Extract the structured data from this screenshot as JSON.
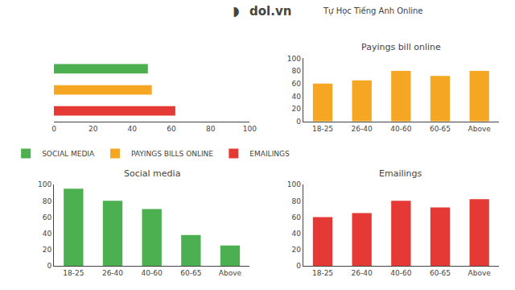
{
  "chart_data": [
    {
      "type": "bar",
      "orientation": "horizontal",
      "annotations": [
        "◗",
        "dol.vn",
        "Tự Học Tiếng Anh Online"
      ],
      "categories": [
        null,
        null,
        null
      ],
      "series": [
        {
          "name": "SOCIAL MEDIA",
          "color": "#4caf50",
          "values": [
            48,
            null,
            null
          ]
        },
        {
          "name": "PAYINGS BILLS ONLINE",
          "color": "#f5a623",
          "values": [
            null,
            50,
            null
          ]
        },
        {
          "name": "EMAILINGS",
          "color": "#e53935",
          "values": [
            null,
            null,
            62
          ]
        }
      ],
      "xlim": [
        0,
        100
      ],
      "xticks": [
        0,
        20,
        40,
        60,
        80,
        100
      ],
      "tick_labels": "x",
      "legend": "bottom",
      "grid": false
    },
    {
      "type": "bar",
      "title": "Payings bill online",
      "categories": [
        "18-25",
        "26-40",
        "40-60",
        "60-65",
        "Above"
      ],
      "values": [
        60,
        65,
        80,
        72,
        80
      ],
      "color": "#f5a623",
      "ylim": [
        0,
        100
      ],
      "yticks": [
        0,
        20,
        40,
        60,
        80,
        100
      ],
      "grid": false
    },
    {
      "type": "bar",
      "title": "Social media",
      "categories": [
        "18-25",
        "26-40",
        "40-60",
        "60-65",
        "Above"
      ],
      "values": [
        95,
        80,
        70,
        38,
        25
      ],
      "color": "#4caf50",
      "ylim": [
        0,
        100
      ],
      "yticks": [
        0,
        20,
        40,
        60,
        80,
        100
      ],
      "grid": false
    },
    {
      "type": "bar",
      "title": "Emailings",
      "categories": [
        "18-25",
        "26-40",
        "40-60",
        "60-65",
        "Above"
      ],
      "values": [
        60,
        65,
        80,
        72,
        82
      ],
      "color": "#e53935",
      "ylim": [
        0,
        100
      ],
      "yticks": [
        0,
        20,
        40,
        60,
        80,
        100
      ],
      "grid": false
    }
  ]
}
